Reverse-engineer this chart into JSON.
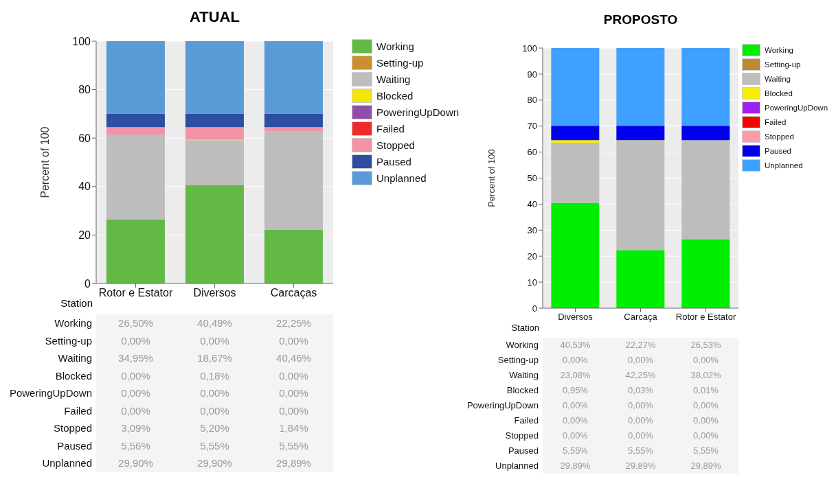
{
  "chart_data": [
    {
      "type": "bar",
      "title": "ATUAL",
      "xlabel": "Station",
      "ylabel": "Percent of 100",
      "categories": [
        "Rotor e Estator",
        "Diversos",
        "Carcaças"
      ],
      "stacked": true,
      "ylim": [
        0,
        100
      ],
      "yticks": [
        0,
        20,
        40,
        60,
        80,
        100
      ],
      "grid": "y",
      "legend": "right",
      "series": [
        {
          "name": "Working",
          "color": "#62b946",
          "values": [
            26.5,
            40.49,
            22.25
          ],
          "value_labels": [
            "26,50%",
            "40,49%",
            "22,25%"
          ]
        },
        {
          "name": "Setting-up",
          "color": "#c8902e",
          "values": [
            0,
            0,
            0
          ],
          "value_labels": [
            "0,00%",
            "0,00%",
            "0,00%"
          ]
        },
        {
          "name": "Waiting",
          "color": "#bdbdbd",
          "values": [
            34.95,
            18.67,
            40.46
          ],
          "value_labels": [
            "34,95%",
            "18,67%",
            "40,46%"
          ]
        },
        {
          "name": "Blocked",
          "color": "#f5e50a",
          "values": [
            0,
            0.18,
            0
          ],
          "value_labels": [
            "0,00%",
            "0,18%",
            "0,00%"
          ]
        },
        {
          "name": "PoweringUpDown",
          "color": "#8e4fa6",
          "values": [
            0,
            0,
            0
          ],
          "value_labels": [
            "0,00%",
            "0,00%",
            "0,00%"
          ]
        },
        {
          "name": "Failed",
          "color": "#ee2b2b",
          "values": [
            0,
            0,
            0
          ],
          "value_labels": [
            "0,00%",
            "0,00%",
            "0,00%"
          ]
        },
        {
          "name": "Stopped",
          "color": "#f394a6",
          "values": [
            3.09,
            5.2,
            1.84
          ],
          "value_labels": [
            "3,09%",
            "5,20%",
            "1,84%"
          ]
        },
        {
          "name": "Paused",
          "color": "#2e4ea3",
          "values": [
            5.56,
            5.55,
            5.55
          ],
          "value_labels": [
            "5,56%",
            "5,55%",
            "5,55%"
          ]
        },
        {
          "name": "Unplanned",
          "color": "#5b9bd5",
          "values": [
            29.9,
            29.9,
            29.89
          ],
          "value_labels": [
            "29,90%",
            "29,90%",
            "29,89%"
          ]
        }
      ]
    },
    {
      "type": "bar",
      "title": "PROPOSTO",
      "xlabel": "Station",
      "ylabel": "Percent of 100",
      "categories": [
        "Diversos",
        "Carcaça",
        "Rotor e Estator"
      ],
      "stacked": true,
      "ylim": [
        0,
        100
      ],
      "yticks": [
        0,
        10,
        20,
        30,
        40,
        50,
        60,
        70,
        80,
        90,
        100
      ],
      "grid": "y",
      "legend": "right",
      "series": [
        {
          "name": "Working",
          "color": "#00ee00",
          "values": [
            40.53,
            22.27,
            26.53
          ],
          "value_labels": [
            "40,53%",
            "22,27%",
            "26,53%"
          ]
        },
        {
          "name": "Setting-up",
          "color": "#c08a30",
          "values": [
            0,
            0,
            0
          ],
          "value_labels": [
            "0,00%",
            "0,00%",
            "0,00%"
          ]
        },
        {
          "name": "Waiting",
          "color": "#bdbdbd",
          "values": [
            23.08,
            42.25,
            38.02
          ],
          "value_labels": [
            "23,08%",
            "42,25%",
            "38,02%"
          ]
        },
        {
          "name": "Blocked",
          "color": "#f7ee00",
          "values": [
            0.95,
            0.03,
            0.01
          ],
          "value_labels": [
            "0,95%",
            "0,03%",
            "0,01%"
          ]
        },
        {
          "name": "PoweringUpDown",
          "color": "#a020f0",
          "values": [
            0,
            0,
            0
          ],
          "value_labels": [
            "0,00%",
            "0,00%",
            "0,00%"
          ]
        },
        {
          "name": "Failed",
          "color": "#ff0000",
          "values": [
            0,
            0,
            0
          ],
          "value_labels": [
            "0,00%",
            "0,00%",
            "0,00%"
          ]
        },
        {
          "name": "Stopped",
          "color": "#ff9aa8",
          "values": [
            0,
            0,
            0
          ],
          "value_labels": [
            "0,00%",
            "0,00%",
            "0,00%"
          ]
        },
        {
          "name": "Paused",
          "color": "#0000ee",
          "values": [
            5.55,
            5.55,
            5.55
          ],
          "value_labels": [
            "5,55%",
            "5,55%",
            "5,55%"
          ]
        },
        {
          "name": "Unplanned",
          "color": "#3fa0ff",
          "values": [
            29.89,
            29.89,
            29.89
          ],
          "value_labels": [
            "29,89%",
            "29,89%",
            "29,89%"
          ]
        }
      ]
    }
  ]
}
